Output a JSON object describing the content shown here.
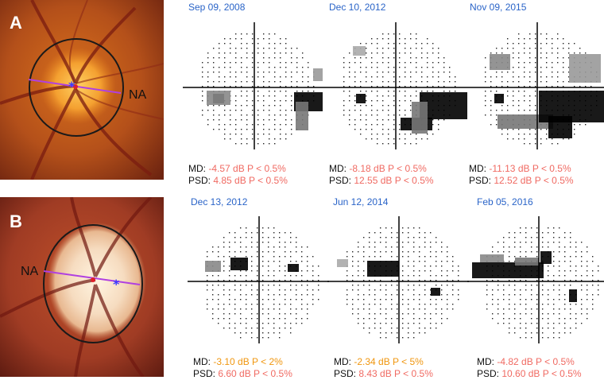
{
  "panels": [
    {
      "label": "A",
      "nasal_label": "NA",
      "fields": [
        {
          "date": "Sep 09, 2008",
          "md_prefix": "MD: ",
          "md_value": "-4.57 dB P < 0.5%",
          "md_color": "#f06a62",
          "psd_prefix": "PSD: ",
          "psd_value": "4.85 dB P < 0.5%",
          "psd_color": "#f06a62"
        },
        {
          "date": "Dec 10, 2012",
          "md_prefix": "MD: ",
          "md_value": "-8.18 dB P < 0.5%",
          "md_color": "#f06a62",
          "psd_prefix": "PSD: ",
          "psd_value": "12.55 dB P < 0.5%",
          "psd_color": "#f06a62"
        },
        {
          "date": "Nov 09, 2015",
          "md_prefix": "MD: ",
          "md_value": "-11.13 dB P < 0.5%",
          "md_color": "#f06a62",
          "psd_prefix": "PSD: ",
          "psd_value": "12.52 dB P < 0.5%",
          "psd_color": "#f06a62"
        }
      ]
    },
    {
      "label": "B",
      "nasal_label": "NA",
      "fields": [
        {
          "date": "Dec 13, 2012",
          "md_prefix": "MD: ",
          "md_value": "-3.10 dB P < 2%",
          "md_color": "#f0960f",
          "psd_prefix": "PSD: ",
          "psd_value": "6.60 dB P < 0.5%",
          "psd_color": "#f06a62"
        },
        {
          "date": "Jun 12, 2014",
          "md_prefix": "MD: ",
          "md_value": "-2.34 dB P < 5%",
          "md_color": "#f0960f",
          "psd_prefix": "PSD: ",
          "psd_value": "8.43 dB P < 0.5%",
          "psd_color": "#f06a62"
        },
        {
          "date": "Feb 05, 2016",
          "md_prefix": "MD: ",
          "md_value": "-4.82 dB P < 0.5%",
          "md_color": "#f06a62",
          "psd_prefix": "PSD: ",
          "psd_value": "10.60 dB P < 0.5%",
          "psd_color": "#f06a62"
        }
      ]
    }
  ],
  "colors": {
    "accent_date": "#2a64c8",
    "marker_red": "#e0202a",
    "marker_blue": "#3a3aff",
    "line_magenta": "#b040e0"
  }
}
